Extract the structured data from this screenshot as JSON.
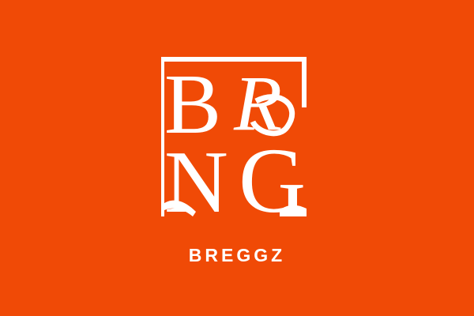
{
  "brand": {
    "wordmark": "BREGGZ",
    "monogram": {
      "letters": [
        "B",
        "R",
        "N",
        "G"
      ],
      "style": "serif ligature monogram"
    }
  },
  "colors": {
    "background": "#F04A06",
    "foreground": "#FFFFFF"
  }
}
